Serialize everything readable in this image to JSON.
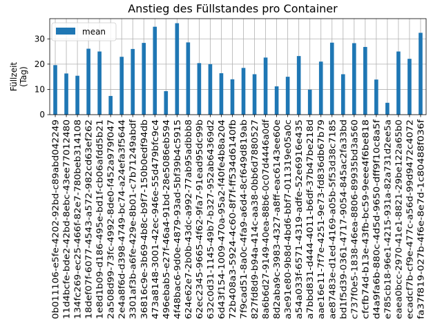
{
  "chart_data": {
    "type": "bar",
    "title": "Anstieg des Füllstandes pro Container",
    "ylabel_lines": [
      "Füllzeit",
      "(Tag)"
    ],
    "xlabel": "",
    "ylim": [
      0,
      38
    ],
    "yticks": [
      0,
      10,
      20,
      30
    ],
    "grid": true,
    "legend_position": "top-left",
    "bar_color": "#1f77b4",
    "series": [
      {
        "name": "mean",
        "values": [
          19.6,
          16.3,
          15.4,
          26.1,
          25.0,
          7.4,
          22.9,
          26.0,
          28.4,
          34.8,
          9.3,
          36.2,
          28.6,
          20.4,
          20.0,
          16.4,
          14.0,
          18.5,
          16.0,
          22.6,
          11.2,
          15.0,
          23.2,
          9.9,
          21.0,
          28.5,
          16.0,
          28.3,
          26.8,
          13.9,
          4.7,
          25.0,
          22.1,
          32.4
        ]
      }
    ],
    "categories": [
      "0b011106-e5fe-4202-92bd-c89abd042249",
      "11d4bcfe-bde2-42bd-8ebc-43ee77012480",
      "134fc269-ec25-466f-82e7-780beb314108",
      "18def07f-6077-4543-a572-982cd63ef262",
      "1e8d1b09-d186-495e-bd1f-cb06afdd5b21",
      "2a508d99-73fc-4992-8de0-f452a979f047",
      "2e4a8f6d-d398-4749-bc74-a24efa3f5644",
      "3301af3b-a6fe-429e-8b01-c7b71249abdf",
      "36816c9e-3b69-4b8c-b9f7-150b0edf94db",
      "473a8148-3001-42ec-946e-55d479bfc9c4",
      "496ebab5-e27f-46a4-91bd-28e5086eb594",
      "4f48bac6-9d0e-4879-93ad-5bf39b4c5915",
      "624e62e7-2b0b-43dc-a992-77ab95adbbb8",
      "62ec2345-9665-4f62-9fa7-91ead95dc99b",
      "632c0d31-1145-49b7-b327-952ab64369d2",
      "6d43f154-1009-470a-95a2-f40fe4b8a204",
      "72b408a3-5924-4c60-8f7f-ff534d6140fb",
      "7f9cad51-8a0c-4fa9-a6d4-8cf649d819ab",
      "827fd8d9-b94a-414c-aa38-0bb6d7880527",
      "8a6b6d27-9149-40ea-88b6-0c07d4446a0df",
      "8d2aba9c-3983-4327-a8ff-eac6143ee60e",
      "a3e91e80-9b8d-4bd6-bbf7-011319e05a0c",
      "a54a033f-6571-4319-adfe-52e6916e435",
      "a7bbd831-d444-4011-b6df-37b47be218d",
      "aae16e11-7f7e-4251-9e73-fd836db67b79",
      "ae87483e-d1ed-4169-a05b-5f53d38c7185",
      "bd1f5d39-0361-4717-9054-845ac2fa33bd",
      "c737f0e5-1838-46ea-8806-89935bd3a560",
      "cfcfb74d-b13e-43fb-bc59-9eee4f6be818",
      "d4a9fa6b-880c-4d5d-9650-dff9f10c8a5f",
      "e785cb18-96e1-4215-931a-82a731d2ee5a",
      "eaea0bcc-2970-41e1-8821-29be122a65b0",
      "ecadcf7b-cf9e-477c-a56d-99d9472c4072",
      "fa37f819-027b-4f6e-8e7d-1c80488f036f"
    ]
  }
}
